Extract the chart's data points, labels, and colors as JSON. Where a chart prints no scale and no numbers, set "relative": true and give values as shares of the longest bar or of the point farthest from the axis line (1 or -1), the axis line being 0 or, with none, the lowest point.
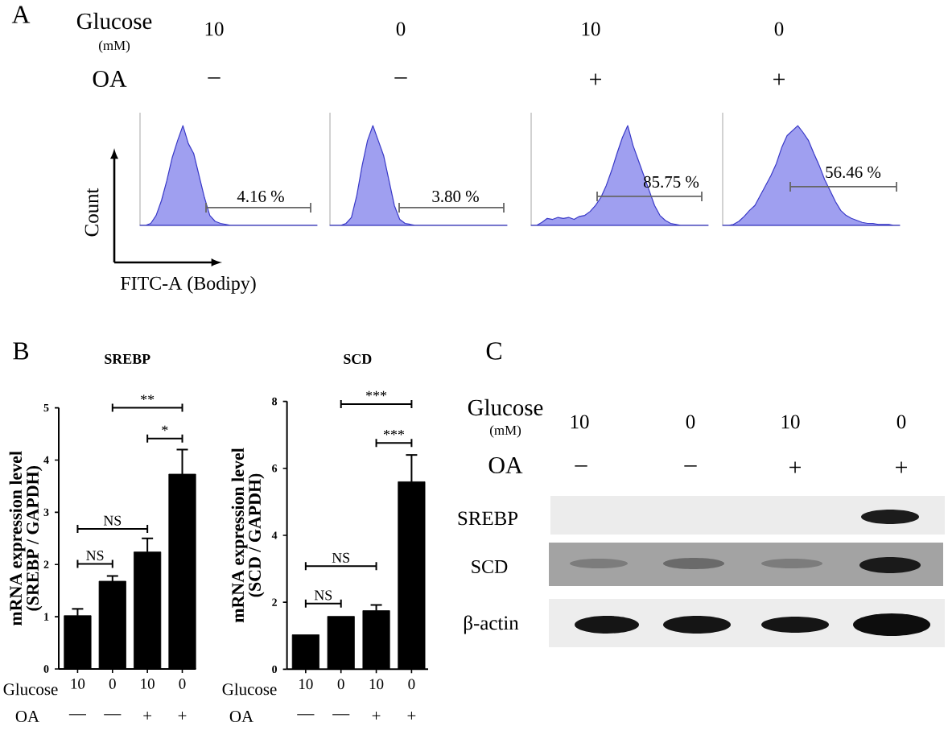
{
  "chart_data": [
    {
      "type": "other",
      "annotations": [
        "A",
        "Glucose",
        "(mM)",
        "OA",
        "10",
        "0",
        "10",
        "0",
        "–",
        "–",
        "+",
        "+"
      ]
    },
    {
      "type": "area",
      "relative": true,
      "xlabel": "FITC-A (Bodipy)",
      "ylabel": "Count",
      "categories": [
        null,
        null,
        null,
        null,
        null,
        null,
        null,
        null,
        null,
        null,
        null,
        null,
        null,
        null,
        null,
        null,
        null,
        null,
        null,
        null,
        null,
        null,
        null,
        null,
        null,
        null,
        null,
        null,
        null,
        null,
        null,
        null,
        null,
        null
      ],
      "color": "#9f9ff0",
      "values": [
        0,
        0,
        0.02,
        0.1,
        0.25,
        0.45,
        0.68,
        0.85,
        1,
        0.82,
        0.72,
        0.5,
        0.28,
        0.1,
        0.04,
        0.02,
        0.01,
        0,
        0,
        0,
        0,
        0,
        0,
        0,
        0,
        0,
        0,
        0,
        0,
        0,
        0,
        0,
        0,
        0
      ],
      "annotations": [
        "4.16 %"
      ]
    },
    {
      "type": "area",
      "relative": true,
      "categories": [
        null,
        null,
        null,
        null,
        null,
        null,
        null,
        null,
        null,
        null,
        null,
        null,
        null,
        null,
        null,
        null,
        null,
        null,
        null,
        null,
        null,
        null,
        null,
        null,
        null,
        null,
        null,
        null,
        null,
        null,
        null,
        null,
        null,
        null
      ],
      "color": "#9f9ff0",
      "values": [
        0,
        0,
        0,
        0.02,
        0.08,
        0.3,
        0.6,
        0.85,
        1,
        0.85,
        0.7,
        0.45,
        0.2,
        0.06,
        0.02,
        0.01,
        0,
        0,
        0,
        0,
        0,
        0,
        0,
        0,
        0,
        0,
        0,
        0,
        0,
        0,
        0,
        0,
        0,
        0
      ],
      "annotations": [
        "3.80 %"
      ]
    },
    {
      "type": "area",
      "relative": true,
      "categories": [
        null,
        null,
        null,
        null,
        null,
        null,
        null,
        null,
        null,
        null,
        null,
        null,
        null,
        null,
        null,
        null,
        null,
        null,
        null,
        null,
        null,
        null,
        null,
        null,
        null,
        null,
        null,
        null,
        null,
        null,
        null,
        null,
        null,
        null
      ],
      "color": "#9f9ff0",
      "values": [
        0,
        0,
        0.03,
        0.07,
        0.06,
        0.08,
        0.07,
        0.08,
        0.06,
        0.09,
        0.1,
        0.14,
        0.2,
        0.28,
        0.4,
        0.55,
        0.72,
        0.88,
        1,
        0.8,
        0.65,
        0.5,
        0.35,
        0.2,
        0.1,
        0.05,
        0.02,
        0.01,
        0,
        0,
        0,
        0,
        0,
        0
      ],
      "annotations": [
        "85.75 %"
      ]
    },
    {
      "type": "area",
      "relative": true,
      "categories": [
        null,
        null,
        null,
        null,
        null,
        null,
        null,
        null,
        null,
        null,
        null,
        null,
        null,
        null,
        null,
        null,
        null,
        null,
        null,
        null,
        null,
        null,
        null,
        null,
        null,
        null,
        null,
        null,
        null,
        null,
        null,
        null,
        null,
        null
      ],
      "color": "#9f9ff0",
      "values": [
        0,
        0,
        0.01,
        0.04,
        0.09,
        0.15,
        0.2,
        0.3,
        0.4,
        0.5,
        0.62,
        0.78,
        0.9,
        0.95,
        1,
        0.93,
        0.85,
        0.72,
        0.6,
        0.46,
        0.35,
        0.24,
        0.15,
        0.1,
        0.07,
        0.05,
        0.03,
        0.02,
        0.02,
        0.01,
        0.01,
        0.01,
        0,
        0
      ],
      "annotations": [
        "56.46 %"
      ]
    },
    {
      "type": "bar",
      "title": "SREBP",
      "ylabel": "mRNA expression level (SREBP / GAPDH)",
      "categories": [
        "10",
        "0",
        "10",
        "0"
      ],
      "values": [
        1.02,
        1.68,
        2.24,
        3.73
      ],
      "errors": [
        0.13,
        0.1,
        0.26,
        0.47
      ],
      "color": "#000000",
      "ylim": [
        0,
        5
      ],
      "yticks": [
        0,
        1,
        2,
        3,
        4,
        5
      ],
      "annotations": [
        "B",
        "**",
        "*",
        "NS",
        "NS",
        "Glucose",
        "OA",
        "—",
        "—",
        "+",
        "+"
      ]
    },
    {
      "type": "bar",
      "title": "SCD",
      "ylabel": "mRNA expression level (SCD / GAPDH)",
      "categories": [
        "10",
        "0",
        "10",
        "0"
      ],
      "values": [
        1.03,
        1.58,
        1.75,
        5.6
      ],
      "errors": [
        null,
        null,
        0.17,
        0.8
      ],
      "color": "#000000",
      "ylim": [
        0,
        8
      ],
      "yticks": [
        0,
        2,
        4,
        6,
        8
      ],
      "annotations": [
        "***",
        "***",
        "NS",
        "NS",
        "Glucose",
        "OA",
        "—",
        "—",
        "+",
        "+"
      ]
    },
    {
      "type": "other",
      "annotations": [
        "C",
        "Glucose",
        "(mM)",
        "OA",
        "10",
        "0",
        "10",
        "0",
        "–",
        "–",
        "+",
        "+",
        "SREBP",
        "SCD",
        "β-actin"
      ]
    }
  ]
}
